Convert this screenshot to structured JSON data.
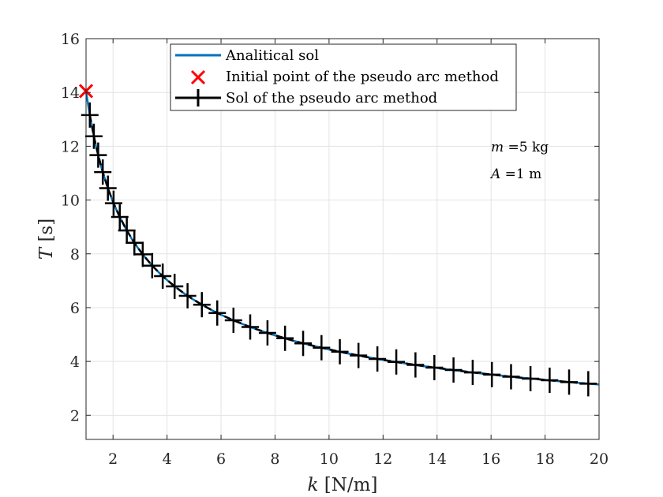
{
  "chart_data": {
    "type": "line",
    "xlabel": "k [N/m]",
    "ylabel": "T [s]",
    "xlim": [
      1,
      20
    ],
    "ylim": [
      1.1,
      16
    ],
    "xticks": [
      2,
      4,
      6,
      8,
      10,
      12,
      14,
      16,
      18,
      20
    ],
    "yticks": [
      2,
      4,
      6,
      8,
      10,
      12,
      14,
      16
    ],
    "grid": true,
    "legend_position": "top-center",
    "series": [
      {
        "name": "Analitical sol",
        "style": "line",
        "color": "#0072BD",
        "formula": "T = 2*pi*sqrt(m/k)",
        "x": [
          1.0,
          1.5,
          2.0,
          3.0,
          4.0,
          5.0,
          6.0,
          8.0,
          10.0,
          12.0,
          14.0,
          16.0,
          18.0,
          20.0
        ],
        "y": [
          14.05,
          11.47,
          9.93,
          8.11,
          7.02,
          6.28,
          5.74,
          4.97,
          4.44,
          4.06,
          3.75,
          3.51,
          3.31,
          3.14
        ]
      },
      {
        "name": "Initial point of the pseudo arc method",
        "style": "marker-x",
        "color": "#FF0000",
        "x": [
          1.0
        ],
        "y": [
          14.05
        ]
      },
      {
        "name": "Sol of the pseudo arc method",
        "style": "dashed-line-plus-markers",
        "color": "#000000",
        "x": [
          1.14,
          1.29,
          1.45,
          1.62,
          1.81,
          2.02,
          2.25,
          2.51,
          2.79,
          3.1,
          3.45,
          3.84,
          4.28,
          4.76,
          5.29,
          5.86,
          6.46,
          7.08,
          7.72,
          8.37,
          9.04,
          9.72,
          10.4,
          11.09,
          11.79,
          12.49,
          13.2,
          13.9,
          14.61,
          15.32,
          16.03,
          16.74,
          17.46,
          18.17,
          18.89,
          19.6
        ],
        "y": [
          13.16,
          12.37,
          11.67,
          11.04,
          10.44,
          9.88,
          9.37,
          8.87,
          8.41,
          7.98,
          7.56,
          7.17,
          6.79,
          6.44,
          6.11,
          5.8,
          5.53,
          5.28,
          5.06,
          4.86,
          4.67,
          4.51,
          4.36,
          4.22,
          4.09,
          3.98,
          3.87,
          3.77,
          3.68,
          3.59,
          3.51,
          3.43,
          3.36,
          3.3,
          3.23,
          3.17
        ]
      }
    ],
    "annotations": [
      {
        "math_var": "m",
        "text": " =5 kg"
      },
      {
        "math_var": "A",
        "text": " =1 m"
      }
    ]
  }
}
